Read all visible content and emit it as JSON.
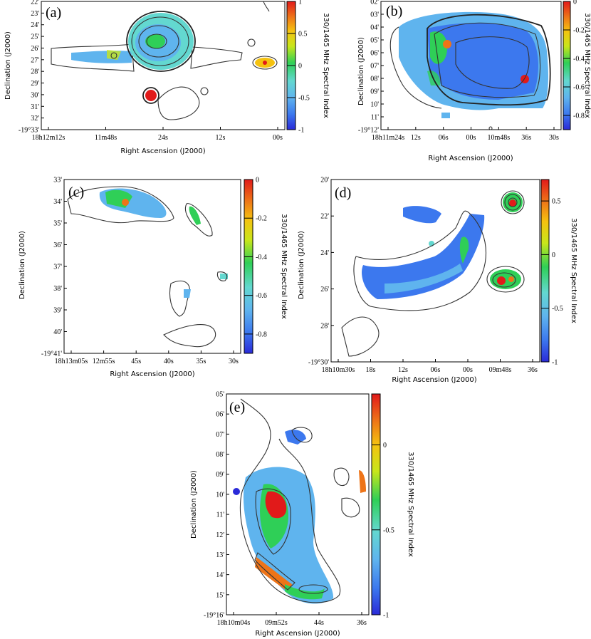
{
  "colormap": [
    "#2a2ad8",
    "#3c78ee",
    "#5fb4ee",
    "#63d8d0",
    "#2fcf57",
    "#c8e61a",
    "#f5c210",
    "#ee7418",
    "#e11a1a"
  ],
  "panels": [
    {
      "id": "a",
      "label": "(a)",
      "ylabel": "Declination (J2000)",
      "xlabel": "Right Ascension (J2000)",
      "cbar_label": "330/1465 MHz Spectral Index",
      "cbar_range": [
        -1,
        1
      ],
      "cbar_ticks": [
        "1",
        "0.5",
        "0",
        "-0.5",
        "-1"
      ],
      "xticks": [
        "18h12m12s",
        "11m48s",
        "24s",
        "12s",
        "00s"
      ],
      "yticks": [
        "22'",
        "23'",
        "24'",
        "25'",
        "26'",
        "27'",
        "28'",
        "29'",
        "30'",
        "31'",
        "32'",
        "-19°33'"
      ]
    },
    {
      "id": "b",
      "label": "(b)",
      "ylabel": "Declination (J2000)",
      "xlabel": "Right Ascension (J2000)",
      "cbar_label": "330/1465 MHz Spectral Index",
      "cbar_range": [
        -0.9,
        0
      ],
      "cbar_ticks": [
        "0",
        "-0.2",
        "-0.4",
        "-0.6",
        "-0.8"
      ],
      "xticks": [
        "18h11m24s",
        "12s",
        "06s",
        "00s",
        "10m48s",
        "36s",
        "30s"
      ],
      "yticks": [
        "02'",
        "03'",
        "04'",
        "05'",
        "06'",
        "07'",
        "08'",
        "09'",
        "10'",
        "11'",
        "-19°12'"
      ]
    },
    {
      "id": "c",
      "label": "(c)",
      "ylabel": "Declination (J2000)",
      "xlabel": "Right Ascension (J2000)",
      "cbar_label": "330/1465 MHz Spectral Index",
      "cbar_range": [
        -0.9,
        0
      ],
      "cbar_ticks": [
        "0",
        "-0.2",
        "-0.4",
        "-0.6",
        "-0.8"
      ],
      "xticks": [
        "18h13m05s",
        "12m55s",
        "45s",
        "40s",
        "35s",
        "30s"
      ],
      "yticks": [
        "33'",
        "34'",
        "35'",
        "36'",
        "37'",
        "38'",
        "39'",
        "40'",
        "-19°41'"
      ]
    },
    {
      "id": "d",
      "label": "(d)",
      "ylabel": "Declination (J2000)",
      "xlabel": "Right Ascension (J2000)",
      "cbar_label": "330/1465 MHz Spectral Index",
      "cbar_range": [
        -1,
        0.7
      ],
      "cbar_ticks": [
        "0.5",
        "0",
        "-0.5",
        "-1"
      ],
      "xticks": [
        "18h10m30s",
        "18s",
        "12s",
        "06s",
        "00s",
        "09m48s",
        "36s"
      ],
      "yticks": [
        "20'",
        "22'",
        "24'",
        "26'",
        "28'",
        "-19°30'"
      ]
    },
    {
      "id": "e",
      "label": "(e)",
      "ylabel": "Declination (J2000)",
      "xlabel": "Right Ascension (J2000)",
      "cbar_label": "330/1465 MHz Spectral Index",
      "cbar_range": [
        -1,
        0.3
      ],
      "cbar_ticks": [
        "0",
        "-0.5",
        "-1"
      ],
      "xticks": [
        "18h10m04s",
        "09m52s",
        "44s",
        "36s"
      ],
      "yticks": [
        "05'",
        "06'",
        "07'",
        "08'",
        "09'",
        "10'",
        "11'",
        "12'",
        "13'",
        "14'",
        "15'",
        "-19°16'"
      ]
    }
  ]
}
